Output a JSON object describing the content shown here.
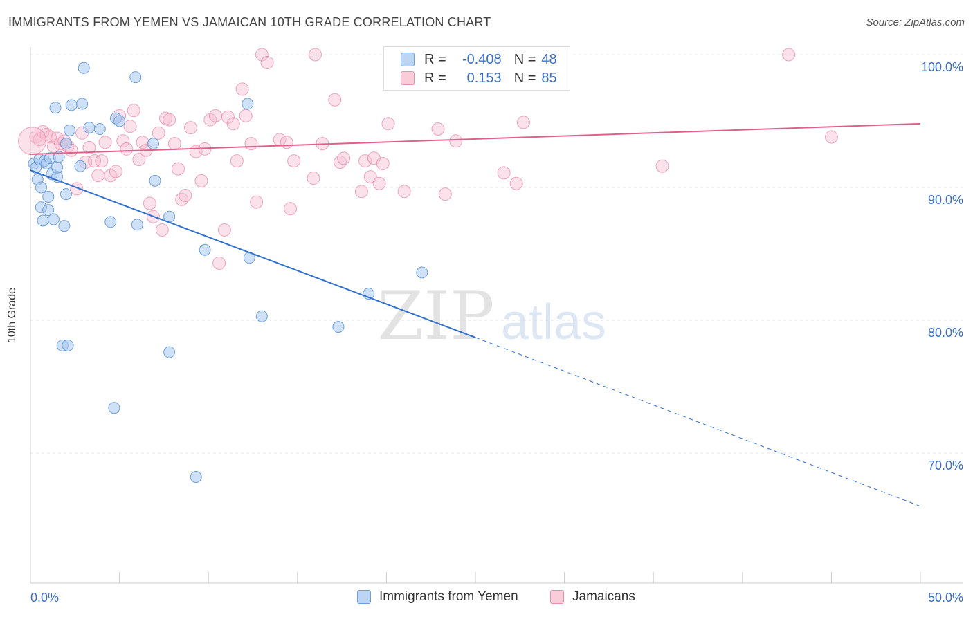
{
  "header": {
    "title": "IMMIGRANTS FROM YEMEN VS JAMAICAN 10TH GRADE CORRELATION CHART",
    "source": "Source: ZipAtlas.com"
  },
  "watermark": {
    "zip": "ZIP",
    "atlas": "atlas"
  },
  "legend": {
    "r_label": "R =",
    "n_label": "N =",
    "rows": [
      {
        "r": "-0.408",
        "n": "48"
      },
      {
        "r": "0.153",
        "n": "85"
      }
    ]
  },
  "chart_data": {
    "type": "scatter",
    "title": "IMMIGRANTS FROM YEMEN VS JAMAICAN 10TH GRADE CORRELATION CHART",
    "xlabel": "",
    "ylabel": "10th Grade",
    "xlim": [
      0,
      50
    ],
    "ylim": [
      61,
      101
    ],
    "x_ticks": [
      "0.0%",
      "50.0%"
    ],
    "y_ticks": [
      {
        "value": 100,
        "label": "100.0%"
      },
      {
        "value": 90,
        "label": "90.0%"
      },
      {
        "value": 80,
        "label": "80.0%"
      },
      {
        "value": 70,
        "label": "70.0%"
      }
    ],
    "grid": true,
    "legend_position": "bottom",
    "colors": {
      "yemen_fill": "#a8c8f0",
      "yemen_stroke": "#6f9fdc",
      "yemen_line": "#2f6fcf",
      "jamaica_fill": "#f7bcd0",
      "jamaica_stroke": "#e890ad",
      "jamaica_line": "#e0608a",
      "tick_label": "#3a6fc4"
    },
    "series": [
      {
        "name": "Immigrants from Yemen",
        "points": [
          [
            0.2,
            91.8
          ],
          [
            0.3,
            91.5
          ],
          [
            0.4,
            90.6
          ],
          [
            0.5,
            92.1
          ],
          [
            0.6,
            88.5
          ],
          [
            0.6,
            90.0
          ],
          [
            0.7,
            87.5
          ],
          [
            0.8,
            92.0
          ],
          [
            0.9,
            91.8
          ],
          [
            1.0,
            89.3
          ],
          [
            1.0,
            88.3
          ],
          [
            1.1,
            92.2
          ],
          [
            1.2,
            91.0
          ],
          [
            1.3,
            87.6
          ],
          [
            1.4,
            96.0
          ],
          [
            1.5,
            90.8
          ],
          [
            1.5,
            91.5
          ],
          [
            1.6,
            92.3
          ],
          [
            1.8,
            78.1
          ],
          [
            1.9,
            87.1
          ],
          [
            2.0,
            89.5
          ],
          [
            2.1,
            78.1
          ],
          [
            2.2,
            94.3
          ],
          [
            2.3,
            96.2
          ],
          [
            2.8,
            91.6
          ],
          [
            2.9,
            96.3
          ],
          [
            3.0,
            99.0
          ],
          [
            3.3,
            94.5
          ],
          [
            3.9,
            94.4
          ],
          [
            4.5,
            87.4
          ],
          [
            4.7,
            73.4
          ],
          [
            4.8,
            95.2
          ],
          [
            5.0,
            95.0
          ],
          [
            5.9,
            98.3
          ],
          [
            6.0,
            87.2
          ],
          [
            6.9,
            93.3
          ],
          [
            7.0,
            90.5
          ],
          [
            7.8,
            87.8
          ],
          [
            7.8,
            77.6
          ],
          [
            9.3,
            68.2
          ],
          [
            9.8,
            85.3
          ],
          [
            12.2,
            96.3
          ],
          [
            12.3,
            84.7
          ],
          [
            13.0,
            80.3
          ],
          [
            17.3,
            79.5
          ],
          [
            19.0,
            82.0
          ],
          [
            22.0,
            83.6
          ],
          [
            2.0,
            93.3
          ]
        ],
        "trend_solid": [
          [
            0,
            91.3
          ],
          [
            25,
            78.7
          ]
        ],
        "trend_dashed": [
          [
            25,
            78.7
          ],
          [
            50,
            66.0
          ]
        ]
      },
      {
        "name": "Jamaicans",
        "points": [
          [
            0.3,
            93.8
          ],
          [
            0.5,
            93.6
          ],
          [
            0.7,
            94.2
          ],
          [
            0.9,
            94.0
          ],
          [
            1.1,
            93.8
          ],
          [
            1.3,
            93.1
          ],
          [
            1.5,
            93.7
          ],
          [
            1.7,
            93.3
          ],
          [
            1.9,
            93.5
          ],
          [
            2.1,
            93.1
          ],
          [
            2.3,
            92.8
          ],
          [
            2.6,
            89.9
          ],
          [
            2.9,
            94.1
          ],
          [
            3.1,
            91.9
          ],
          [
            3.3,
            93.0
          ],
          [
            3.6,
            92.0
          ],
          [
            3.8,
            90.9
          ],
          [
            4.0,
            92.0
          ],
          [
            4.2,
            93.4
          ],
          [
            4.5,
            90.9
          ],
          [
            4.8,
            91.2
          ],
          [
            5.0,
            95.4
          ],
          [
            5.2,
            93.5
          ],
          [
            5.4,
            92.9
          ],
          [
            5.6,
            94.6
          ],
          [
            5.8,
            95.8
          ],
          [
            6.1,
            92.1
          ],
          [
            6.3,
            93.4
          ],
          [
            6.5,
            92.8
          ],
          [
            6.7,
            88.8
          ],
          [
            6.9,
            87.8
          ],
          [
            7.2,
            94.1
          ],
          [
            7.4,
            86.8
          ],
          [
            7.6,
            95.2
          ],
          [
            7.8,
            95.1
          ],
          [
            8.1,
            93.3
          ],
          [
            8.3,
            91.4
          ],
          [
            8.5,
            89.1
          ],
          [
            8.7,
            89.4
          ],
          [
            9.0,
            94.5
          ],
          [
            9.3,
            92.7
          ],
          [
            9.6,
            90.5
          ],
          [
            9.8,
            92.9
          ],
          [
            10.1,
            95.1
          ],
          [
            10.4,
            95.4
          ],
          [
            10.6,
            84.3
          ],
          [
            10.9,
            86.8
          ],
          [
            11.1,
            95.3
          ],
          [
            11.4,
            94.8
          ],
          [
            11.6,
            92.0
          ],
          [
            11.9,
            97.4
          ],
          [
            12.1,
            95.4
          ],
          [
            12.4,
            93.3
          ],
          [
            12.7,
            88.9
          ],
          [
            13.0,
            100.0
          ],
          [
            13.3,
            99.4
          ],
          [
            14.0,
            93.6
          ],
          [
            14.4,
            93.4
          ],
          [
            14.6,
            88.4
          ],
          [
            14.8,
            92.0
          ],
          [
            15.9,
            90.7
          ],
          [
            16.0,
            100.0
          ],
          [
            16.4,
            93.3
          ],
          [
            17.1,
            96.6
          ],
          [
            17.4,
            91.9
          ],
          [
            17.6,
            92.2
          ],
          [
            18.6,
            89.7
          ],
          [
            18.8,
            92.0
          ],
          [
            19.1,
            90.8
          ],
          [
            19.3,
            92.2
          ],
          [
            19.6,
            90.3
          ],
          [
            19.8,
            91.8
          ],
          [
            20.1,
            94.8
          ],
          [
            21.0,
            89.7
          ],
          [
            22.9,
            94.4
          ],
          [
            23.3,
            89.5
          ],
          [
            23.9,
            93.5
          ],
          [
            26.6,
            91.1
          ],
          [
            27.1,
            100.0
          ],
          [
            27.3,
            90.3
          ],
          [
            27.7,
            94.9
          ],
          [
            35.5,
            91.6
          ],
          [
            42.6,
            100.0
          ],
          [
            45.0,
            93.8
          ],
          [
            0.1,
            93.5
          ]
        ],
        "trend": [
          [
            0,
            92.5
          ],
          [
            50,
            94.8
          ]
        ]
      }
    ]
  }
}
